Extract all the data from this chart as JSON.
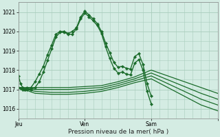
{
  "xlabel": "Pression niveau de la mer( hPa )",
  "bg_color": "#d4ece3",
  "grid_color": "#a8ccbc",
  "line_color": "#1a6b2a",
  "ylim": [
    1015.5,
    1021.5
  ],
  "xlim": [
    0,
    48
  ],
  "yticks": [
    1016,
    1017,
    1018,
    1019,
    1020,
    1021
  ],
  "xtick_positions": [
    0,
    16,
    32,
    48
  ],
  "xtick_labels": [
    "Jeu",
    "Ven",
    "Sam",
    ""
  ],
  "series": [
    {
      "x": [
        0,
        0.5,
        1,
        1.5,
        2,
        3,
        4,
        5,
        6,
        7,
        8,
        9,
        10,
        11,
        12,
        13,
        14,
        15,
        16,
        17,
        18,
        19,
        20,
        21,
        22,
        23,
        24,
        25,
        26,
        27,
        28,
        29,
        30,
        31,
        32
      ],
      "y": [
        1017.7,
        1017.3,
        1017.1,
        1017.0,
        1017.1,
        1017.1,
        1017.4,
        1017.8,
        1018.2,
        1018.8,
        1019.3,
        1019.85,
        1020.0,
        1020.0,
        1019.9,
        1020.0,
        1020.2,
        1020.75,
        1021.05,
        1020.85,
        1020.65,
        1020.4,
        1020.0,
        1019.4,
        1018.9,
        1018.4,
        1018.15,
        1018.2,
        1018.1,
        1018.05,
        1018.7,
        1018.85,
        1018.3,
        1017.3,
        1016.65
      ],
      "marker": true,
      "lw": 1.0
    },
    {
      "x": [
        0,
        0.5,
        1,
        1.5,
        2,
        3,
        4,
        5,
        6,
        7,
        8,
        9,
        10,
        11,
        12,
        13,
        14,
        15,
        16,
        17,
        18,
        19,
        20,
        21,
        22,
        23,
        24,
        25,
        26,
        27,
        28,
        29,
        30,
        31,
        32
      ],
      "y": [
        1017.1,
        1017.05,
        1017.0,
        1017.0,
        1017.0,
        1017.0,
        1017.1,
        1017.4,
        1017.9,
        1018.5,
        1019.1,
        1019.7,
        1019.95,
        1019.95,
        1019.85,
        1019.85,
        1020.15,
        1020.65,
        1020.95,
        1020.75,
        1020.55,
        1020.3,
        1019.9,
        1019.2,
        1018.6,
        1018.1,
        1017.85,
        1017.9,
        1017.8,
        1017.75,
        1018.35,
        1018.55,
        1018.0,
        1016.9,
        1016.25
      ],
      "marker": true,
      "lw": 1.0
    },
    {
      "x": [
        0,
        4,
        8,
        12,
        16,
        20,
        24,
        28,
        32,
        36,
        40,
        44,
        48
      ],
      "y": [
        1017.1,
        1017.1,
        1017.1,
        1017.1,
        1017.15,
        1017.2,
        1017.4,
        1017.65,
        1018.0,
        1017.7,
        1017.4,
        1017.1,
        1016.8
      ],
      "marker": false,
      "lw": 0.9
    },
    {
      "x": [
        0,
        4,
        8,
        12,
        16,
        20,
        24,
        28,
        32,
        36,
        40,
        44,
        48
      ],
      "y": [
        1017.1,
        1017.0,
        1017.0,
        1017.0,
        1017.05,
        1017.1,
        1017.3,
        1017.55,
        1017.85,
        1017.5,
        1017.15,
        1016.8,
        1016.5
      ],
      "marker": false,
      "lw": 0.9
    },
    {
      "x": [
        0,
        4,
        8,
        12,
        16,
        20,
        24,
        28,
        32,
        36,
        40,
        44,
        48
      ],
      "y": [
        1017.1,
        1016.9,
        1016.85,
        1016.85,
        1016.9,
        1017.0,
        1017.2,
        1017.45,
        1017.7,
        1017.3,
        1016.9,
        1016.5,
        1016.2
      ],
      "marker": false,
      "lw": 0.9
    },
    {
      "x": [
        0,
        4,
        8,
        12,
        16,
        20,
        24,
        28,
        32,
        36,
        40,
        44,
        48
      ],
      "y": [
        1017.1,
        1016.8,
        1016.75,
        1016.75,
        1016.8,
        1016.9,
        1017.1,
        1017.35,
        1017.55,
        1017.1,
        1016.65,
        1016.2,
        1015.9
      ],
      "marker": false,
      "lw": 0.9
    }
  ]
}
